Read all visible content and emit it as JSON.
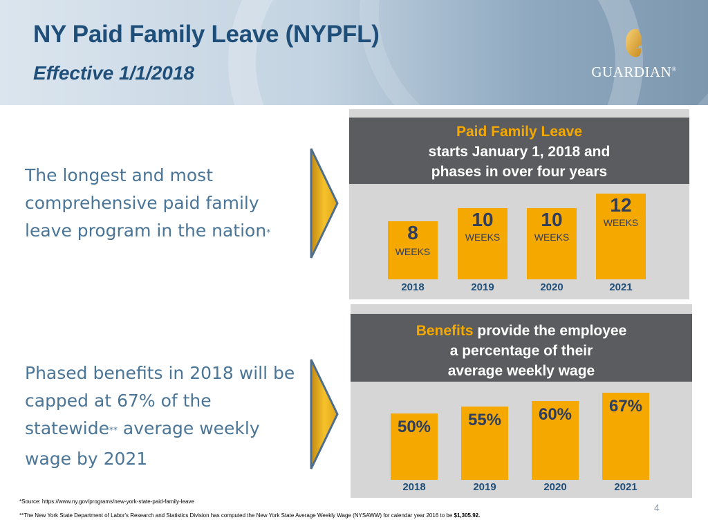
{
  "slide": {
    "title": "NY Paid Family Leave (NYPFL)",
    "subtitle": "Effective 1/1/2018",
    "page_number": "4"
  },
  "logo": {
    "text": "GUARDIAN",
    "registered": "®",
    "icon": "g-logo-icon"
  },
  "bullets": [
    {
      "text_before": "The longest and most comprehensive paid family leave program in the nation",
      "marker": "*"
    },
    {
      "text_before": "Phased benefits in 2018 will be capped at 67% of the statewide",
      "marker": "**",
      "text_after": " average weekly wage by 2021"
    }
  ],
  "panel_weeks": {
    "heading_line1": "Paid Family Leave",
    "heading_line2": "starts January 1, 2018 and",
    "heading_line3": "phases in over four years",
    "unit": "WEEKS",
    "bars": [
      {
        "year": "2018",
        "value": "8"
      },
      {
        "year": "2019",
        "value": "10"
      },
      {
        "year": "2020",
        "value": "10"
      },
      {
        "year": "2021",
        "value": "12"
      }
    ]
  },
  "panel_percent": {
    "heading_accent": "Benefits",
    "heading_line1_rest": " provide the employee",
    "heading_line2": "a percentage of their",
    "heading_line3": "average weekly wage",
    "bars": [
      {
        "year": "2018",
        "value": "50%"
      },
      {
        "year": "2019",
        "value": "55%"
      },
      {
        "year": "2020",
        "value": "60%"
      },
      {
        "year": "2021",
        "value": "67%"
      }
    ]
  },
  "footnotes": {
    "source": "*Source: https://www.ny.gov/programs/new-york-state-paid-family-leave",
    "nysaww_text": "**The New York State Department of Labor's Research and Statistics Division has computed the New York State Average Weekly Wage (NYSAWW) for calendar year 2016 to be ",
    "nysaww_value": "$1,305.92."
  },
  "colors": {
    "title": "#1f4e79",
    "bullet_text": "#4a7597",
    "bar": "#f5a800",
    "banner": "#5b5c5f",
    "panel_bg": "#d6d6d6"
  }
}
